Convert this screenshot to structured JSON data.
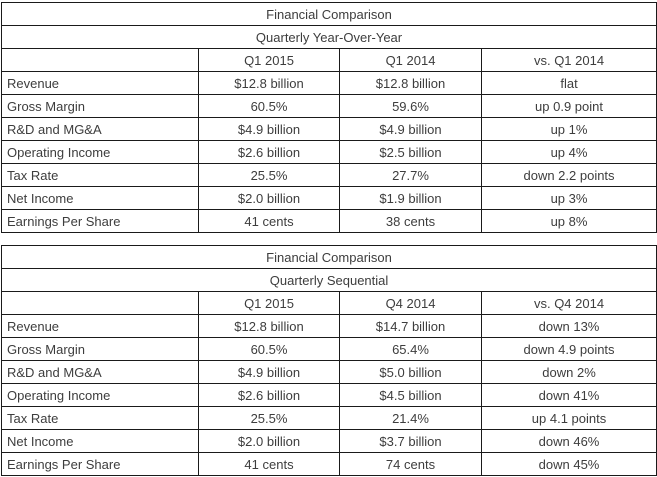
{
  "page": {
    "background": "#ffffff",
    "text_color": "#3d3d3d",
    "border_color": "#1a1a1a"
  },
  "tables": [
    {
      "title": "Financial Comparison",
      "subtitle": "Quarterly Year-Over-Year",
      "columns": [
        "",
        "Q1 2015",
        "Q1 2014",
        "vs. Q1 2014"
      ],
      "rows": [
        {
          "label": "Revenue",
          "values": [
            "$12.8 billion",
            "$12.8 billion",
            "flat"
          ]
        },
        {
          "label": "Gross Margin",
          "values": [
            "60.5%",
            "59.6%",
            "up 0.9 point"
          ]
        },
        {
          "label": "R&D and MG&A",
          "values": [
            "$4.9 billion",
            "$4.9 billion",
            "up 1%"
          ]
        },
        {
          "label": "Operating Income",
          "values": [
            "$2.6 billion",
            "$2.5 billion",
            "up 4%"
          ]
        },
        {
          "label": "Tax Rate",
          "values": [
            "25.5%",
            "27.7%",
            "down 2.2 points"
          ]
        },
        {
          "label": "Net Income",
          "values": [
            "$2.0 billion",
            "$1.9 billion",
            "up 3%"
          ]
        },
        {
          "label": "Earnings Per Share",
          "values": [
            "41 cents",
            "38 cents",
            "up 8%"
          ]
        }
      ]
    },
    {
      "title": "Financial Comparison",
      "subtitle": "Quarterly Sequential",
      "columns": [
        "",
        "Q1 2015",
        "Q4 2014",
        "vs. Q4 2014"
      ],
      "rows": [
        {
          "label": "Revenue",
          "values": [
            "$12.8 billion",
            "$14.7 billion",
            "down 13%"
          ]
        },
        {
          "label": "Gross Margin",
          "values": [
            "60.5%",
            "65.4%",
            "down 4.9 points"
          ]
        },
        {
          "label": "R&D and MG&A",
          "values": [
            "$4.9 billion",
            "$5.0 billion",
            "down 2%"
          ]
        },
        {
          "label": "Operating Income",
          "values": [
            "$2.6 billion",
            "$4.5 billion",
            "down 41%"
          ]
        },
        {
          "label": "Tax Rate",
          "values": [
            "25.5%",
            "21.4%",
            "up 4.1 points"
          ]
        },
        {
          "label": "Net Income",
          "values": [
            "$2.0 billion",
            "$3.7 billion",
            "down 46%"
          ]
        },
        {
          "label": "Earnings Per Share",
          "values": [
            "41 cents",
            "74 cents",
            "down 45%"
          ]
        }
      ]
    }
  ]
}
